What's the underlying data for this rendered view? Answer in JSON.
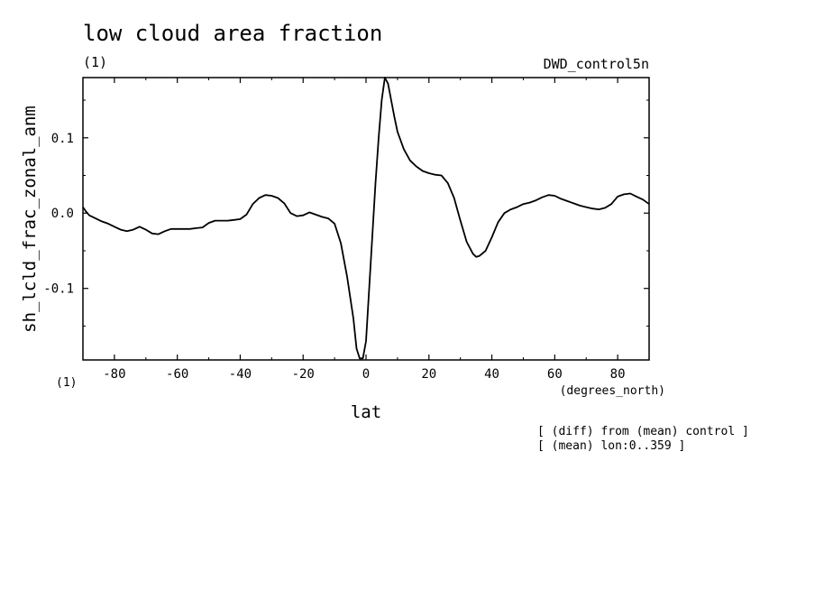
{
  "chart_data": {
    "type": "line",
    "title": "low cloud area fraction",
    "subtitle_left": "(1)",
    "subtitle_right": "DWD_control5n",
    "ylabel": "sh_lcld_frac_zonal_anm",
    "xlabel": "lat",
    "x_units": "(degrees_north)",
    "y_units": "(1)",
    "xlim": [
      -90,
      90
    ],
    "ylim": [
      -0.195,
      0.18
    ],
    "x_ticks": [
      -80,
      -60,
      -40,
      -20,
      0,
      20,
      40,
      60,
      80
    ],
    "x_tick_labels": [
      "-80",
      "-60",
      "-40",
      "-20",
      "0",
      "20",
      "40",
      "60",
      "80"
    ],
    "y_ticks": [
      -0.1,
      0.0,
      0.1
    ],
    "y_tick_labels": [
      "-0.1",
      "0.0",
      "0.1"
    ],
    "notes": [
      "[ (diff) from (mean) control ]",
      "[ (mean) lon:0..359 ]"
    ],
    "series": [
      {
        "x": [
          -90,
          -89,
          -88,
          -86,
          -84,
          -82,
          -80,
          -78,
          -76,
          -74,
          -72,
          -70,
          -68,
          -66,
          -64,
          -62,
          -60,
          -58,
          -56,
          -54,
          -52,
          -50,
          -48,
          -46,
          -44,
          -42,
          -40,
          -38,
          -36,
          -34,
          -32,
          -30,
          -28,
          -26,
          -24,
          -22,
          -20,
          -18,
          -16,
          -14,
          -12,
          -10,
          -8,
          -6,
          -4,
          -3,
          -2,
          -1,
          0,
          1,
          2,
          3,
          4,
          5,
          6,
          7,
          8,
          9,
          10,
          12,
          14,
          16,
          18,
          20,
          22,
          24,
          26,
          28,
          30,
          32,
          34,
          35,
          36,
          38,
          40,
          42,
          44,
          46,
          48,
          50,
          52,
          54,
          56,
          58,
          60,
          62,
          64,
          66,
          68,
          70,
          72,
          74,
          76,
          78,
          80,
          82,
          84,
          86,
          88,
          90
        ],
        "y": [
          0.008,
          0.002,
          -0.003,
          -0.007,
          -0.011,
          -0.014,
          -0.018,
          -0.022,
          -0.024,
          -0.022,
          -0.018,
          -0.022,
          -0.027,
          -0.028,
          -0.024,
          -0.021,
          -0.021,
          -0.021,
          -0.021,
          -0.02,
          -0.019,
          -0.013,
          -0.01,
          -0.01,
          -0.01,
          -0.009,
          -0.008,
          -0.002,
          0.012,
          0.02,
          0.024,
          0.023,
          0.02,
          0.013,
          0.0,
          -0.004,
          -0.003,
          0.001,
          -0.002,
          -0.005,
          -0.007,
          -0.014,
          -0.04,
          -0.085,
          -0.14,
          -0.18,
          -0.193,
          -0.193,
          -0.17,
          -0.1,
          -0.03,
          0.04,
          0.1,
          0.15,
          0.18,
          0.172,
          0.15,
          0.128,
          0.108,
          0.085,
          0.07,
          0.062,
          0.056,
          0.053,
          0.051,
          0.05,
          0.04,
          0.02,
          -0.01,
          -0.038,
          -0.054,
          -0.058,
          -0.057,
          -0.05,
          -0.032,
          -0.012,
          0.0,
          0.005,
          0.008,
          0.012,
          0.014,
          0.017,
          0.021,
          0.024,
          0.023,
          0.019,
          0.016,
          0.013,
          0.01,
          0.008,
          0.006,
          0.005,
          0.007,
          0.012,
          0.022,
          0.025,
          0.026,
          0.022,
          0.018,
          0.012
        ]
      }
    ]
  }
}
